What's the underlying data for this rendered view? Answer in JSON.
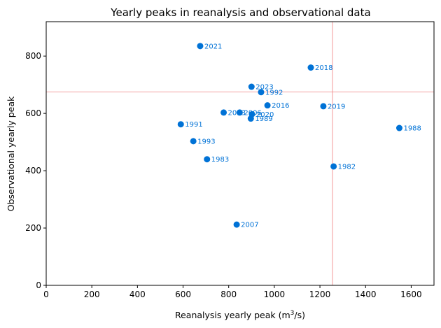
{
  "chart_data": {
    "type": "scatter",
    "title": "Yearly peaks in reanalysis and observational data",
    "xlabel_prefix": "Reanalysis yearly peak (m",
    "xlabel_sup": "3",
    "xlabel_suffix": "/s)",
    "ylabel": "Observational yearly peak",
    "xlim": [
      0,
      1700
    ],
    "ylim": [
      0,
      920
    ],
    "xticks": [
      0,
      200,
      400,
      600,
      800,
      1000,
      1200,
      1400,
      1600
    ],
    "yticks": [
      0,
      200,
      400,
      600,
      800
    ],
    "grid": false,
    "point_color": "#0072d6",
    "label_color": "#0072d6",
    "reference_line_color": "#f08080",
    "reference_lines": {
      "x": 1255,
      "y": 675
    },
    "points": [
      {
        "label": "2021",
        "x": 675,
        "y": 835
      },
      {
        "label": "2018",
        "x": 1160,
        "y": 760
      },
      {
        "label": "2023",
        "x": 900,
        "y": 693
      },
      {
        "label": "1992",
        "x": 942,
        "y": 674
      },
      {
        "label": "2016",
        "x": 970,
        "y": 628
      },
      {
        "label": "2019",
        "x": 1215,
        "y": 625
      },
      {
        "label": "2003",
        "x": 778,
        "y": 603
      },
      {
        "label": "2006",
        "x": 848,
        "y": 603
      },
      {
        "label": "2020",
        "x": 902,
        "y": 597
      },
      {
        "label": "1989",
        "x": 897,
        "y": 582
      },
      {
        "label": "1991",
        "x": 590,
        "y": 562
      },
      {
        "label": "1988",
        "x": 1548,
        "y": 549
      },
      {
        "label": "1993",
        "x": 645,
        "y": 503
      },
      {
        "label": "1983",
        "x": 705,
        "y": 440
      },
      {
        "label": "1982",
        "x": 1260,
        "y": 415
      },
      {
        "label": "2007",
        "x": 835,
        "y": 212
      }
    ]
  }
}
